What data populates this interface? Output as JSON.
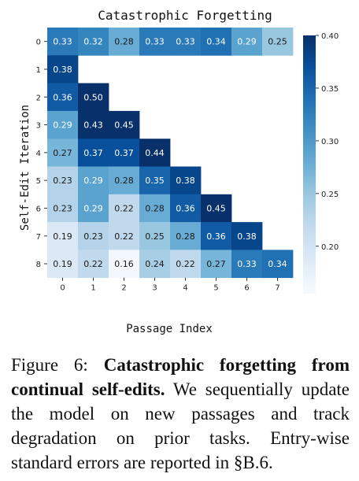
{
  "chart_data": {
    "type": "heatmap",
    "title": "Catastrophic Forgetting",
    "xlabel": "Passage Index",
    "ylabel": "Self-Edit Iteration",
    "x_ticks": [
      "0",
      "1",
      "2",
      "3",
      "4",
      "5",
      "6",
      "7"
    ],
    "y_ticks": [
      "0",
      "1",
      "2",
      "3",
      "4",
      "5",
      "6",
      "7",
      "8"
    ],
    "colorbar": {
      "min": 0.155,
      "max": 0.4,
      "ticks": [
        "0.20",
        "0.25",
        "0.30",
        "0.35",
        "0.40"
      ],
      "colormap": "Blues"
    },
    "rows": [
      [
        0.33,
        0.32,
        0.28,
        0.33,
        0.33,
        0.34,
        0.29,
        0.25
      ],
      [
        0.38,
        null,
        null,
        null,
        null,
        null,
        null,
        null
      ],
      [
        0.36,
        0.5,
        null,
        null,
        null,
        null,
        null,
        null
      ],
      [
        0.29,
        0.43,
        0.45,
        null,
        null,
        null,
        null,
        null
      ],
      [
        0.27,
        0.37,
        0.37,
        0.44,
        null,
        null,
        null,
        null
      ],
      [
        0.23,
        0.29,
        0.28,
        0.35,
        0.38,
        null,
        null,
        null
      ],
      [
        0.23,
        0.29,
        0.22,
        0.28,
        0.36,
        0.45,
        null,
        null
      ],
      [
        0.19,
        0.23,
        0.22,
        0.25,
        0.28,
        0.36,
        0.38,
        null
      ],
      [
        0.19,
        0.22,
        0.16,
        0.24,
        0.22,
        0.27,
        0.33,
        0.34
      ]
    ]
  },
  "caption": {
    "label": "Figure 6:",
    "bold": "Catastrophic forgetting from continual self-edits.",
    "text": "We sequentially update the model on new passages and track degradation on prior tasks. Entry-wise standard errors are reported in §B.6."
  }
}
